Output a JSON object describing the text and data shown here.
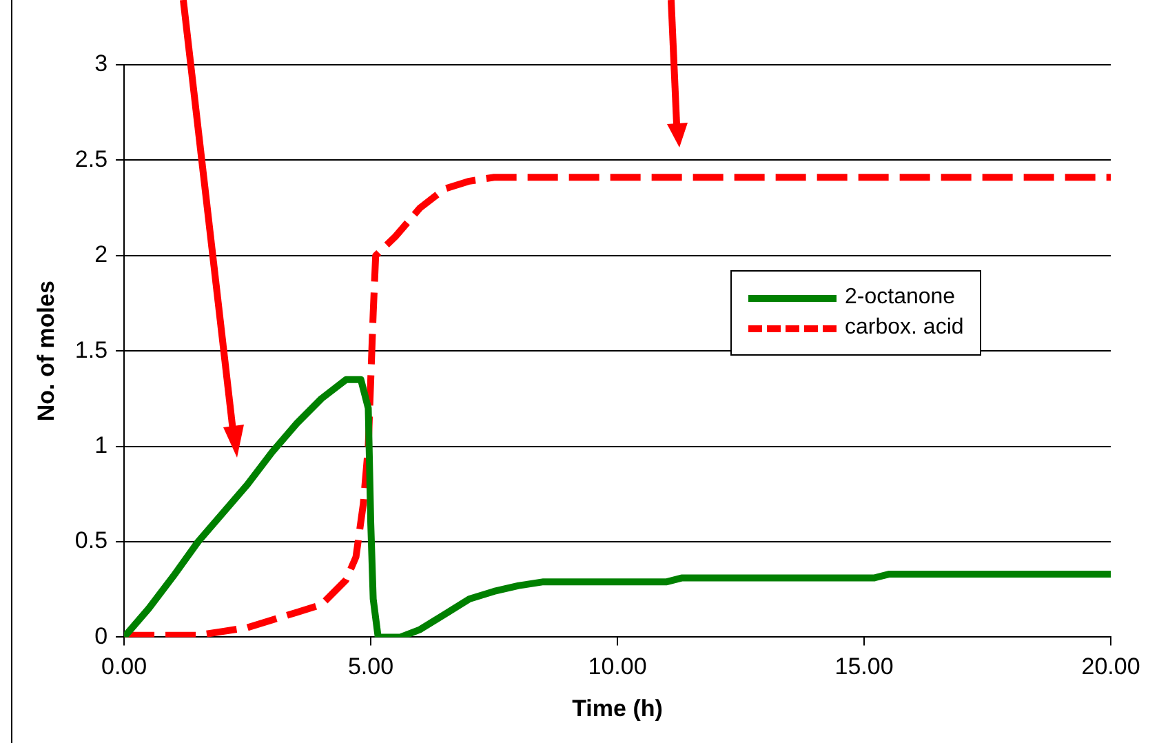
{
  "chart_data": {
    "type": "line",
    "xlabel": "Time (h)",
    "ylabel": "No. of moles",
    "xlim": [
      0,
      20
    ],
    "xticks": [
      {
        "value": 0,
        "label": "0.00"
      },
      {
        "value": 5,
        "label": "5.00"
      },
      {
        "value": 10,
        "label": "10.00"
      },
      {
        "value": 15,
        "label": "15.00"
      },
      {
        "value": 20,
        "label": "20.00"
      }
    ],
    "ylim": [
      0,
      3
    ],
    "yticks": [
      0,
      0.5,
      1,
      1.5,
      2,
      2.5,
      3
    ],
    "grid": "y",
    "legend": "right",
    "marker": "none",
    "series": [
      {
        "name": "2-octanone",
        "color": "#008000",
        "line_style": "solid",
        "x": [
          0,
          0.5,
          1,
          1.5,
          2,
          2.5,
          3,
          3.5,
          4,
          4.5,
          4.8,
          4.95,
          5,
          5.05,
          5.15,
          5.6,
          6,
          6.5,
          7,
          7.5,
          8,
          8.5,
          11,
          11.3,
          15.2,
          15.5,
          20
        ],
        "values": [
          0,
          0.15,
          0.32,
          0.5,
          0.65,
          0.8,
          0.97,
          1.12,
          1.25,
          1.35,
          1.35,
          1.2,
          0.6,
          0.2,
          0,
          0,
          0.04,
          0.12,
          0.2,
          0.24,
          0.27,
          0.29,
          0.29,
          0.31,
          0.31,
          0.33,
          0.33
        ]
      },
      {
        "name": "carbox. acid",
        "color": "#ff0000",
        "line_style": "dashed",
        "x": [
          0,
          1.5,
          2,
          2.5,
          3,
          3.5,
          4,
          4.5,
          4.7,
          4.85,
          4.95,
          5,
          5.05,
          5.1,
          5.5,
          6,
          6.5,
          7,
          7.5,
          20
        ],
        "values": [
          0.01,
          0.01,
          0.03,
          0.05,
          0.09,
          0.13,
          0.17,
          0.3,
          0.42,
          0.7,
          1,
          1.35,
          1.7,
          2,
          2.1,
          2.25,
          2.35,
          2.39,
          2.41,
          2.41
        ]
      }
    ]
  }
}
